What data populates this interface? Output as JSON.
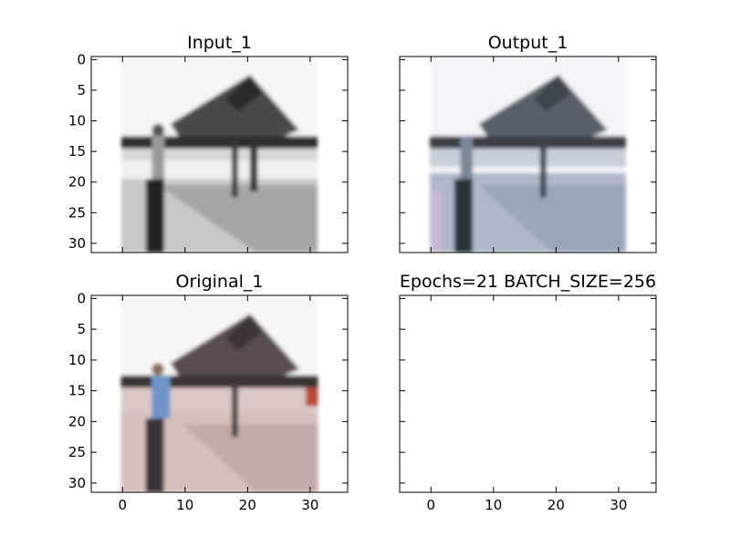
{
  "chart_data": [
    {
      "type": "image",
      "title": "Input_1",
      "image_desc": "grayscale blurred photo: gabled canopy/shelter with a person standing at left",
      "xlim": [
        -5,
        36
      ],
      "ylim": [
        31.5,
        -0.5
      ],
      "yticks": [
        "0",
        "5",
        "10",
        "15",
        "20",
        "25",
        "30"
      ],
      "xticks": [],
      "yticks_values": [
        0,
        5,
        10,
        15,
        20,
        25,
        30
      ],
      "xticks_values": []
    },
    {
      "type": "image",
      "title": "Output_1",
      "image_desc": "bluish-gray reconstruction of the same canopy scene",
      "xlim": [
        -5,
        36
      ],
      "ylim": [
        31.5,
        -0.5
      ],
      "yticks": [],
      "xticks": [],
      "yticks_values": [
        0,
        5,
        10,
        15,
        20,
        25,
        30
      ],
      "xticks_values": []
    },
    {
      "type": "image",
      "title": "Original_1",
      "image_desc": "color photo: dark canopy, person in blue shirt, pinkish-beige ground",
      "xlim": [
        -5,
        36
      ],
      "ylim": [
        31.5,
        -0.5
      ],
      "yticks": [
        "0",
        "5",
        "10",
        "15",
        "20",
        "25",
        "30"
      ],
      "xticks": [
        "0",
        "10",
        "20",
        "30"
      ],
      "yticks_values": [
        0,
        5,
        10,
        15,
        20,
        25,
        30
      ],
      "xticks_values": [
        0,
        10,
        20,
        30
      ]
    },
    {
      "type": "empty",
      "title": "Epochs=21 BATCH_SIZE=256",
      "xlim": [
        -5,
        36
      ],
      "ylim": [
        31.5,
        -0.5
      ],
      "yticks": [],
      "xticks": [
        "0",
        "10",
        "20",
        "30"
      ],
      "yticks_values": [
        0,
        5,
        10,
        15,
        20,
        25,
        30
      ],
      "xticks_values": [
        0,
        10,
        20,
        30
      ]
    }
  ],
  "colors": {
    "axis": "#000000",
    "background": "#ffffff"
  }
}
